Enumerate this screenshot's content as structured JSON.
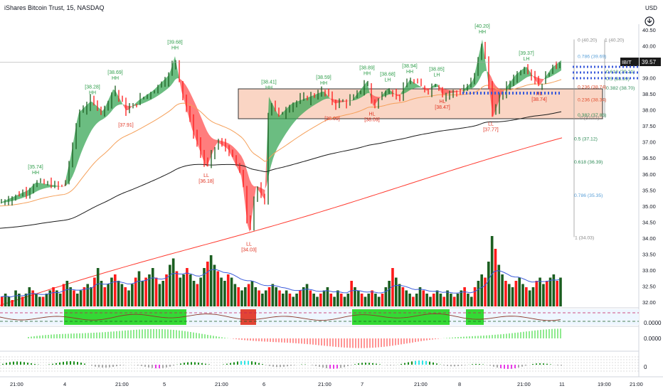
{
  "header": {
    "title": "iShares Bitcoin Trust, 15, NASDAQ",
    "currency": "USD"
  },
  "colors": {
    "up": "#1b5e20",
    "down": "#ff1a1a",
    "cloud_up": "#3aa757",
    "cloud_down": "#ff5252",
    "ema_black": "#1a1a1a",
    "ema_orange": "#f5a05a",
    "ema_red": "#ff3b30",
    "fib_box": "#f8c7b0",
    "vol_ma": "#3b5bdb",
    "price_tag_bg": "#1a1a1a"
  },
  "chart_data": {
    "type": "candlestick",
    "symbol": "IBIT",
    "last_price": "39.57",
    "y_axis": {
      "min": 31.8,
      "max": 40.6,
      "ticks": [
        "40.50",
        "40.00",
        "39.50",
        "39.00",
        "38.50",
        "38.00",
        "37.50",
        "37.00",
        "36.50",
        "36.00",
        "35.50",
        "35.00",
        "34.50",
        "34.00",
        "33.50",
        "33.00",
        "32.50",
        "32.00"
      ]
    },
    "x_axis_labels": [
      "21:00",
      "4",
      "21:00",
      "5",
      "21:00",
      "6",
      "21:00",
      "7",
      "21:00",
      "8",
      "21:00",
      "11",
      "19:00",
      "21:00"
    ],
    "swing_labels": [
      {
        "price": "[35.74]",
        "tag": "HH",
        "kind": "high"
      },
      {
        "price": "[38.28]",
        "tag": "HH",
        "kind": "high"
      },
      {
        "price": "[38.69]",
        "tag": "HH",
        "kind": "high"
      },
      {
        "price": "[37.91]",
        "tag": "",
        "kind": "low"
      },
      {
        "price": "[39.68]",
        "tag": "HH",
        "kind": "high"
      },
      {
        "price": "[36.18]",
        "tag": "LL",
        "kind": "low"
      },
      {
        "price": "[34.03]",
        "tag": "LL",
        "kind": "low"
      },
      {
        "price": "[38.41]",
        "tag": "HH",
        "kind": "high"
      },
      {
        "price": "[38.59]",
        "tag": "HH",
        "kind": "high"
      },
      {
        "price": "[38.09]",
        "tag": "",
        "kind": "low"
      },
      {
        "price": "[38.89]",
        "tag": "HH",
        "kind": "high"
      },
      {
        "price": "[38.09]",
        "tag": "HL",
        "kind": "low"
      },
      {
        "price": "[38.68]",
        "tag": "LH",
        "kind": "high"
      },
      {
        "price": "[38.94]",
        "tag": "HH",
        "kind": "high"
      },
      {
        "price": "[38.85]",
        "tag": "LH",
        "kind": "high"
      },
      {
        "price": "[38.47]",
        "tag": "HL",
        "kind": "low"
      },
      {
        "price": "[40.20]",
        "tag": "HH",
        "kind": "high"
      },
      {
        "price": "[37.77]",
        "tag": "LL",
        "kind": "low"
      },
      {
        "price": "[39.37]",
        "tag": "LH",
        "kind": "high"
      },
      {
        "price": "[38.74]",
        "tag": "HL",
        "kind": "low"
      }
    ],
    "fib_levels": [
      {
        "label": "0 (40.20)",
        "value": 40.2,
        "color": "#888888"
      },
      {
        "label": "0.786 (39.69)",
        "value": 39.69,
        "color": "#5aa0d8"
      },
      {
        "label": "0.618 (39.21)",
        "value": 39.21,
        "color": "#2e8b57"
      },
      {
        "label": "0.5 (38.99)",
        "value": 38.99,
        "color": "#2e8b57"
      },
      {
        "label": "0.382 (38.70)",
        "value": 38.7,
        "color": "#2e8b57"
      },
      {
        "label": "0.236 (38.74)",
        "value": 38.74,
        "color": "#e05030"
      },
      {
        "label": "0.236 (38.34)",
        "value": 38.34,
        "color": "#e05030"
      },
      {
        "label": "0.382 (37.86)",
        "value": 37.86,
        "color": "#2e8b57"
      },
      {
        "label": "0 (37.77)",
        "value": 37.77,
        "color": "#888888"
      },
      {
        "label": "0.5 (37.12)",
        "value": 37.12,
        "color": "#2e8b57"
      },
      {
        "label": "0.618 (36.39)",
        "value": 36.39,
        "color": "#2e8b57"
      },
      {
        "label": "0.786 (35.35)",
        "value": 35.35,
        "color": "#5aa0d8"
      },
      {
        "label": "1 (34.03)",
        "value": 34.03,
        "color": "#888888"
      },
      {
        "label": "1 (40.20)",
        "value": 40.2,
        "color": "#888888"
      }
    ],
    "volume": [
      3,
      4,
      3,
      2,
      5,
      4,
      3,
      4,
      6,
      5,
      4,
      3,
      3,
      4,
      5,
      6,
      5,
      4,
      7,
      8,
      6,
      5,
      4,
      5,
      6,
      7,
      6,
      9,
      12,
      8,
      6,
      7,
      9,
      10,
      8,
      7,
      6,
      5,
      7,
      9,
      11,
      8,
      9,
      10,
      12,
      9,
      7,
      8,
      10,
      13,
      15,
      11,
      9,
      10,
      12,
      10,
      8,
      7,
      9,
      12,
      14,
      16,
      13,
      11,
      9,
      8,
      10,
      9,
      7,
      6,
      5,
      6,
      7,
      8,
      6,
      5,
      4,
      5,
      6,
      7,
      6,
      5,
      4,
      5,
      4,
      3,
      4,
      5,
      6,
      7,
      5,
      4,
      3,
      4,
      5,
      6,
      4,
      3,
      5,
      4,
      3,
      4,
      8,
      6,
      5,
      4,
      3,
      4,
      5,
      4,
      3,
      4,
      6,
      8,
      12,
      9,
      7,
      6,
      5,
      4,
      3,
      4,
      6,
      5,
      4,
      3,
      4,
      5,
      4,
      3,
      5,
      4,
      3,
      4,
      5,
      6,
      4,
      3,
      6,
      8,
      10,
      9,
      14,
      22,
      18,
      13,
      10,
      8,
      7,
      6,
      8,
      9,
      7,
      6,
      5,
      6,
      8,
      9,
      7,
      8,
      9,
      10,
      8,
      9
    ],
    "indicator_right_values": [
      "0.0000",
      "0.0000",
      "0"
    ]
  }
}
